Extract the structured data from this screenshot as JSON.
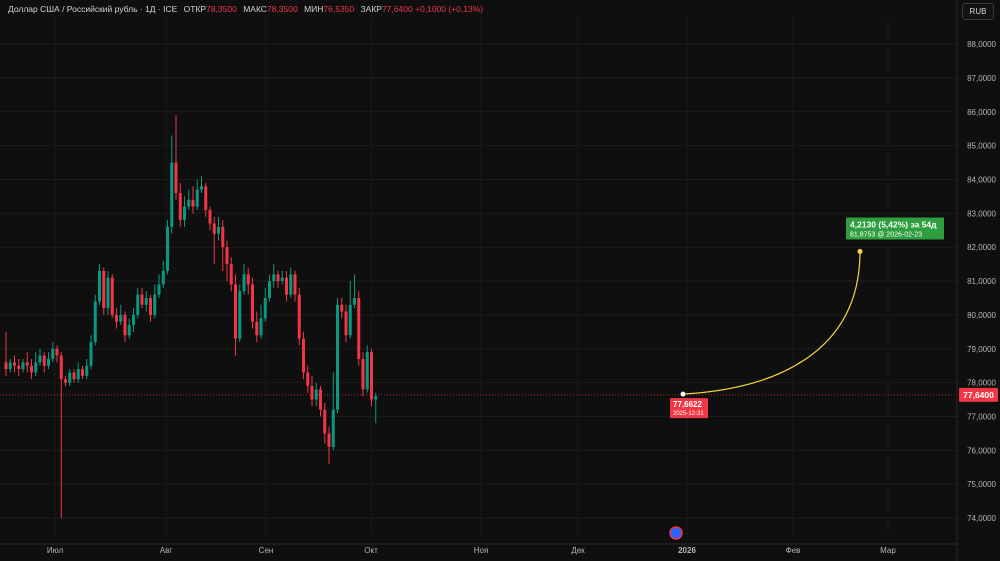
{
  "header": {
    "symbol": "Доллар США / Российский рубль · 1Д · ICE",
    "open_label": "ОТКР",
    "open": "78,3500",
    "high_label": "МАКС",
    "high": "78,3500",
    "low_label": "МИН",
    "low": "76,5350",
    "close_label": "ЗАКР",
    "close": "77,6400",
    "change": "+0,1000 (+0,13%)"
  },
  "currency_button": "RUB",
  "current_price_label": "77,6400",
  "marker": {
    "price": "77,6622",
    "date": "2025-12-31"
  },
  "projection": {
    "line1": "4,2130 (5,42%) за 54д",
    "line2": "81,8753 @ 2026-02-23",
    "target": 81.8753,
    "start": 77.6622
  },
  "colors": {
    "up": "#089981",
    "down": "#f23645",
    "bg": "#0f0f0f",
    "projection": "#f5d63b",
    "label_green": "#2e9e3e"
  },
  "chart_data": {
    "type": "candlestick",
    "title": "Доллар США / Российский рубль · 1Д · ICE",
    "ylim": [
      73.5,
      88.8
    ],
    "yticks": [
      "88,0000",
      "87,0000",
      "86,0000",
      "85,0000",
      "84,0000",
      "83,0000",
      "82,0000",
      "81,0000",
      "80,0000",
      "79,0000",
      "78,0000",
      "77,0000",
      "76,0000",
      "75,0000",
      "74,0000"
    ],
    "ytick_values": [
      88,
      87,
      86,
      85,
      84,
      83,
      82,
      81,
      80,
      79,
      78,
      77,
      76,
      75,
      74
    ],
    "xticks": [
      "Июл",
      "Авг",
      "Сен",
      "Окт",
      "Ноя",
      "Дек",
      "2026",
      "Фев",
      "Мар"
    ],
    "candles": [
      [
        78.6,
        78.4,
        79.5,
        78.2
      ],
      [
        78.4,
        78.6,
        78.7,
        78.3
      ],
      [
        78.6,
        78.5,
        78.8,
        78.3
      ],
      [
        78.5,
        78.4,
        78.7,
        78.2
      ],
      [
        78.4,
        78.6,
        78.7,
        78.3
      ],
      [
        78.6,
        78.5,
        78.9,
        78.3
      ],
      [
        78.5,
        78.3,
        78.7,
        78.1
      ],
      [
        78.3,
        78.6,
        78.9,
        78.2
      ],
      [
        78.6,
        78.8,
        79.0,
        78.5
      ],
      [
        78.8,
        78.5,
        78.9,
        78.3
      ],
      [
        78.5,
        78.7,
        78.9,
        78.4
      ],
      [
        78.7,
        79.0,
        79.2,
        78.6
      ],
      [
        79.0,
        78.8,
        79.1,
        78.6
      ],
      [
        78.8,
        78.1,
        78.9,
        74.0
      ],
      [
        78.1,
        78.0,
        78.2,
        77.9
      ],
      [
        78.0,
        78.3,
        78.4,
        77.9
      ],
      [
        78.3,
        78.1,
        78.4,
        78.0
      ],
      [
        78.1,
        78.4,
        78.6,
        78.0
      ],
      [
        78.4,
        78.2,
        78.5,
        78.1
      ],
      [
        78.2,
        78.5,
        78.7,
        78.1
      ],
      [
        78.5,
        79.2,
        79.4,
        78.4
      ],
      [
        79.2,
        80.4,
        80.6,
        79.1
      ],
      [
        80.4,
        81.3,
        81.5,
        80.3
      ],
      [
        81.3,
        80.2,
        81.4,
        80.0
      ],
      [
        80.2,
        81.1,
        81.3,
        80.0
      ],
      [
        81.1,
        80.0,
        81.2,
        79.9
      ],
      [
        80.0,
        79.8,
        80.2,
        79.6
      ],
      [
        79.8,
        80.0,
        80.3,
        79.7
      ],
      [
        80.0,
        79.4,
        80.1,
        79.2
      ],
      [
        79.4,
        79.7,
        79.9,
        79.3
      ],
      [
        79.7,
        80.0,
        80.2,
        79.5
      ],
      [
        80.0,
        80.6,
        80.8,
        79.9
      ],
      [
        80.6,
        80.3,
        80.8,
        80.2
      ],
      [
        80.3,
        80.5,
        80.7,
        80.1
      ],
      [
        80.5,
        80.0,
        80.6,
        79.8
      ],
      [
        80.0,
        80.6,
        80.9,
        79.9
      ],
      [
        80.6,
        80.9,
        81.2,
        80.5
      ],
      [
        80.9,
        81.3,
        81.6,
        80.8
      ],
      [
        81.3,
        82.6,
        82.8,
        81.2
      ],
      [
        82.6,
        84.5,
        85.3,
        82.4
      ],
      [
        84.5,
        83.6,
        85.9,
        83.4
      ],
      [
        83.6,
        82.8,
        83.9,
        82.6
      ],
      [
        82.8,
        83.2,
        83.5,
        82.6
      ],
      [
        83.2,
        83.4,
        83.7,
        83.1
      ],
      [
        83.4,
        83.2,
        83.8,
        83.0
      ],
      [
        83.2,
        83.7,
        84.0,
        83.1
      ],
      [
        83.7,
        83.8,
        84.1,
        83.6
      ],
      [
        83.8,
        83.1,
        83.9,
        82.9
      ],
      [
        83.1,
        82.7,
        83.2,
        82.5
      ],
      [
        82.7,
        82.4,
        82.9,
        81.5
      ],
      [
        82.4,
        82.6,
        82.9,
        82.2
      ],
      [
        82.6,
        82.0,
        82.8,
        81.3
      ],
      [
        82.0,
        81.5,
        82.2,
        81.0
      ],
      [
        81.5,
        80.9,
        81.7,
        80.7
      ],
      [
        80.9,
        79.3,
        81.2,
        78.8
      ],
      [
        79.3,
        80.7,
        80.9,
        79.2
      ],
      [
        80.7,
        81.2,
        81.5,
        80.6
      ],
      [
        81.2,
        80.9,
        81.4,
        80.6
      ],
      [
        80.9,
        79.8,
        81.1,
        79.6
      ],
      [
        79.8,
        79.4,
        80.1,
        79.2
      ],
      [
        79.4,
        79.9,
        80.3,
        79.3
      ],
      [
        79.9,
        80.5,
        80.8,
        79.8
      ],
      [
        80.5,
        81.0,
        81.2,
        80.4
      ],
      [
        81.0,
        81.2,
        81.5,
        80.8
      ],
      [
        81.2,
        81.0,
        81.3,
        80.8
      ],
      [
        81.0,
        81.1,
        81.3,
        80.9
      ],
      [
        81.1,
        80.6,
        81.3,
        80.4
      ],
      [
        80.6,
        81.2,
        81.4,
        80.5
      ],
      [
        81.2,
        80.6,
        81.3,
        80.4
      ],
      [
        80.6,
        79.3,
        80.8,
        79.1
      ],
      [
        79.3,
        78.3,
        79.5,
        78.1
      ],
      [
        78.3,
        77.9,
        78.5,
        77.7
      ],
      [
        77.9,
        77.5,
        78.2,
        77.3
      ],
      [
        77.5,
        77.8,
        78.0,
        77.3
      ],
      [
        77.8,
        77.2,
        77.9,
        77.0
      ],
      [
        77.2,
        76.5,
        77.4,
        76.2
      ],
      [
        76.5,
        76.1,
        76.7,
        75.6
      ],
      [
        76.1,
        77.2,
        78.3,
        76.0
      ],
      [
        77.2,
        80.3,
        80.5,
        77.1
      ],
      [
        80.3,
        80.1,
        80.5,
        79.9
      ],
      [
        80.1,
        79.4,
        80.3,
        79.2
      ],
      [
        79.4,
        80.3,
        81.0,
        79.3
      ],
      [
        80.3,
        80.5,
        81.2,
        80.2
      ],
      [
        80.5,
        78.7,
        80.7,
        78.5
      ],
      [
        78.7,
        77.8,
        78.9,
        77.6
      ],
      [
        77.8,
        78.9,
        79.1,
        77.7
      ],
      [
        78.9,
        77.5,
        79.0,
        77.3
      ],
      [
        77.5,
        77.6,
        77.7,
        76.8
      ]
    ]
  }
}
